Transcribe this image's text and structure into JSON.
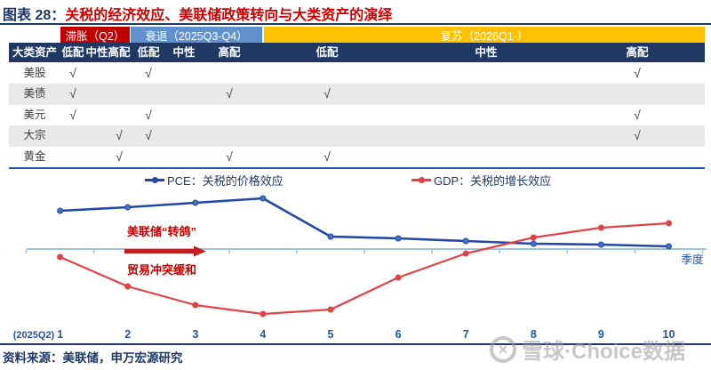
{
  "title": {
    "prefix": "图表 28：",
    "main": "关税的经济效应、美联储政策转向与大类资产的演绎"
  },
  "phases": [
    {
      "label": "滞胀（Q2）",
      "bg": "#C00000"
    },
    {
      "label": "衰退（2025Q3-Q4）",
      "bg": "#6191CC"
    },
    {
      "label": "复苏（2026Q1-）",
      "bg": "#FFC000"
    }
  ],
  "table": {
    "corner_label": "大类资产",
    "alloc_labels": [
      "低配",
      "中性",
      "高配"
    ],
    "check_glyph": "√",
    "rows": [
      {
        "asset": "美股",
        "alloc_by_phase": [
          "低配",
          "低配",
          "高配"
        ]
      },
      {
        "asset": "美债",
        "alloc_by_phase": [
          "低配",
          "高配",
          "低配"
        ]
      },
      {
        "asset": "美元",
        "alloc_by_phase": [
          "低配",
          "低配",
          "高配"
        ]
      },
      {
        "asset": "大宗",
        "alloc_by_phase": [
          "高配",
          "低配",
          "高配"
        ]
      },
      {
        "asset": "黄金",
        "alloc_by_phase": [
          "高配",
          "高配",
          "低配"
        ]
      }
    ]
  },
  "legend": [
    {
      "label": "PCE：关税的价格效应",
      "color": "#2147A8"
    },
    {
      "label": "GDP：关税的增长效应",
      "color": "#E04345"
    }
  ],
  "chart_data": {
    "type": "line",
    "x": [
      1,
      2,
      3,
      4,
      5,
      6,
      7,
      8,
      9,
      10
    ],
    "x_tick_labels": [
      "1",
      "2",
      "3",
      "4",
      "5",
      "6",
      "7",
      "8",
      "9",
      "10"
    ],
    "first_tick_note": "(2025Q2)",
    "xlabel": "季度",
    "ylabel": "",
    "y_axis_note": "no y-axis labels shown; values are relative effect sizes around the zero baseline",
    "grid": false,
    "legend_position": "top",
    "series": [
      {
        "name": "PCE：关税的价格效应",
        "color": "#2147A8",
        "values": [
          0.43,
          0.47,
          0.52,
          0.57,
          0.14,
          0.12,
          0.09,
          0.06,
          0.05,
          0.03
        ]
      },
      {
        "name": "GDP：关税的增长效应",
        "color": "#E04345",
        "values": [
          -0.09,
          -0.42,
          -0.63,
          -0.73,
          -0.68,
          -0.32,
          -0.05,
          0.13,
          0.24,
          0.29
        ]
      }
    ],
    "annotations": [
      {
        "id": "fed-dovish",
        "text": "美联储“转鸽”",
        "color": "#C00000"
      },
      {
        "id": "trade-ease",
        "text": "贸易冲突缓和",
        "color": "#C00000"
      },
      {
        "id": "dovish-arrow",
        "type": "arrow-right",
        "color": "#C02020"
      }
    ]
  },
  "colors": {
    "navy": "#1F3864",
    "title_red": "#CC0000",
    "axis_blue": "#9DC3E6",
    "tick_label_blue": "#2353A4",
    "row_alt_gray": "#E9E9E9",
    "table_border_blue": "#2653B5"
  },
  "source": "资料来源：美联储，申万宏源研究",
  "watermark": {
    "logo_glyph": "×",
    "text": "雪球·Choice数据"
  }
}
